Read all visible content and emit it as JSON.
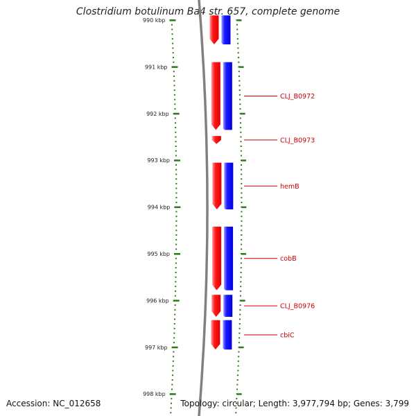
{
  "header": {
    "title": "Clostridium botulinum Ba4 str. 657, complete genome"
  },
  "footer": {
    "accession": "Accession: NC_012658",
    "topology": "Topology: circular; Length: 3,977,794 bp; Genes: 3,799"
  },
  "axis": {
    "unit": "kbp",
    "ticks": [
      {
        "value": 990,
        "label": "990 kbp"
      },
      {
        "value": 991,
        "label": "991 kbp"
      },
      {
        "value": 992,
        "label": "992 kbp"
      },
      {
        "value": 993,
        "label": "993 kbp"
      },
      {
        "value": 994,
        "label": "994 kbp"
      },
      {
        "value": 995,
        "label": "995 kbp"
      },
      {
        "value": 996,
        "label": "996 kbp"
      },
      {
        "value": 997,
        "label": "997 kbp"
      },
      {
        "value": 998,
        "label": "998 kbp"
      }
    ]
  },
  "genes": [
    {
      "start": 989.9,
      "end": 990.52,
      "label": ""
    },
    {
      "start": 990.9,
      "end": 992.35,
      "label": "CLJ_B0972"
    },
    {
      "start": 992.48,
      "end": 992.65,
      "label": "CLJ_B0973"
    },
    {
      "start": 993.05,
      "end": 994.05,
      "label": "hemB"
    },
    {
      "start": 994.42,
      "end": 995.78,
      "label": "cobB"
    },
    {
      "start": 995.88,
      "end": 996.35,
      "label": "CLJ_B0976"
    },
    {
      "start": 996.42,
      "end": 997.05,
      "label": "cbiC"
    }
  ],
  "colors": {
    "forward_strand": "#ff0000",
    "cds": "#0000ff",
    "label": "#cc0000",
    "ticks": "#2a7a1a",
    "backbone": "#808080"
  }
}
